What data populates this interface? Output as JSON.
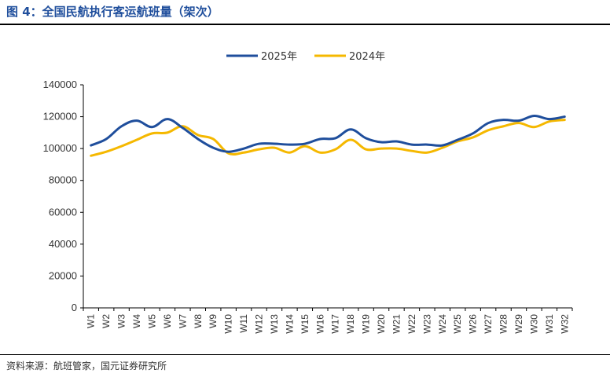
{
  "figure": {
    "title": "图 4：全国民航执行客运航班量（架次）",
    "source": "资料来源：航班管家，国元证券研究所"
  },
  "colors": {
    "title": "#1f4e9c",
    "series_2025": "#1f4e9c",
    "series_2024": "#f5b800"
  },
  "chart_data": {
    "type": "line",
    "title": "",
    "xlabel": "",
    "ylabel": "",
    "ylim": [
      0,
      140000
    ],
    "yticks": [
      0,
      20000,
      40000,
      60000,
      80000,
      100000,
      120000,
      140000
    ],
    "legend_position": "top-center",
    "grid": false,
    "categories": [
      "W1",
      "W2",
      "W3",
      "W4",
      "W5",
      "W6",
      "W7",
      "W8",
      "W9",
      "W10",
      "W11",
      "W12",
      "W13",
      "W14",
      "W15",
      "W16",
      "W17",
      "W18",
      "W19",
      "W20",
      "W21",
      "W22",
      "W23",
      "W24",
      "W25",
      "W26",
      "W27",
      "W28",
      "W29",
      "W30",
      "W31",
      "W32"
    ],
    "series": [
      {
        "name": "2025年",
        "color": "#1f4e9c",
        "values": [
          102000,
          106000,
          114000,
          117500,
          113500,
          118500,
          113000,
          106000,
          100500,
          98000,
          100000,
          103000,
          103000,
          102500,
          103000,
          106000,
          106500,
          112000,
          106500,
          104000,
          104500,
          102500,
          102500,
          102000,
          105500,
          109500,
          116000,
          118000,
          117500,
          120500,
          118500,
          120000
        ]
      },
      {
        "name": "2024年",
        "color": "#f5b800",
        "values": [
          95500,
          98000,
          101500,
          105500,
          109500,
          110000,
          114000,
          108500,
          106000,
          97000,
          97500,
          99500,
          100500,
          97500,
          101500,
          97500,
          99500,
          105500,
          99500,
          100000,
          100000,
          98500,
          97500,
          100500,
          104500,
          107000,
          111500,
          114000,
          116000,
          113500,
          117000,
          118000
        ]
      }
    ]
  }
}
